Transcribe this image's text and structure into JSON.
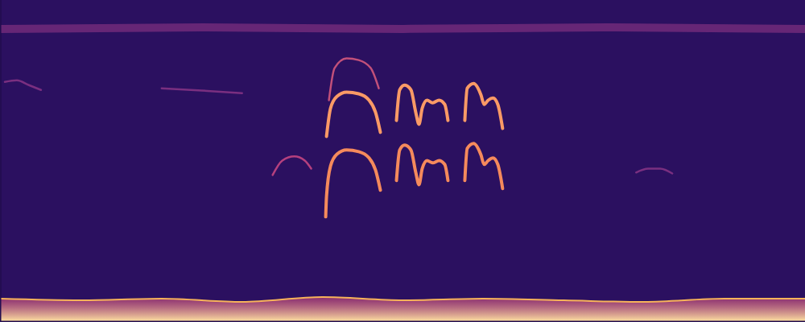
{
  "chart_data": {
    "type": "spectrogram",
    "xlim": [
      0,
      100
    ],
    "ylim": [
      0,
      100
    ],
    "tick_labels": false,
    "grid": false,
    "series": [
      {
        "type": "area",
        "color": "#f7b35a",
        "x": [
          0,
          10,
          20,
          30,
          40,
          50,
          60,
          70,
          80,
          90,
          100
        ],
        "values": [
          7,
          6.5,
          7,
          6,
          7.5,
          6.5,
          7,
          6.5,
          6,
          7,
          7
        ]
      },
      {
        "type": "line",
        "color": "#8e3585",
        "x": [
          0,
          25,
          50,
          75,
          100
        ],
        "values": [
          91,
          91.5,
          91,
          91.5,
          91
        ]
      },
      {
        "type": "line",
        "color": "#7a2f80",
        "x": [
          0.5,
          2,
          3.5,
          5
        ],
        "values": [
          74.5,
          75,
          73.5,
          72
        ]
      },
      {
        "type": "line",
        "color": "#7a2f80",
        "x": [
          20,
          25,
          30
        ],
        "values": [
          72.5,
          71.8,
          71
        ]
      },
      {
        "type": "line",
        "color": "#b5407e",
        "x": [
          33.8,
          35,
          36.5,
          37.8,
          38.6
        ],
        "values": [
          45.5,
          50,
          51.3,
          50,
          47.5
        ]
      },
      {
        "type": "line",
        "color": "#c2507a",
        "x": [
          40.8,
          41.5,
          43,
          44.5,
          46,
          47
        ],
        "values": [
          68.8,
          78.8,
          81.8,
          81.3,
          78.8,
          72.5
        ]
      },
      {
        "type": "line",
        "color": "#fa9a66",
        "x": [
          40.5,
          41,
          41.8,
          43,
          44.5,
          45.8,
          46.6,
          47.2
        ],
        "values": [
          57.5,
          66.3,
          70,
          71.3,
          70.8,
          68.8,
          65,
          58.8
        ]
      },
      {
        "type": "line",
        "color": "#f58a5c",
        "x": [
          40.4,
          40.5,
          41,
          41.8,
          43,
          44.5,
          45.8,
          46.6,
          47.2
        ],
        "values": [
          32.5,
          38.8,
          48.3,
          52,
          53.3,
          52.8,
          50.8,
          47,
          40.8
        ]
      },
      {
        "type": "line",
        "color": "#fa9a66",
        "x": [
          49.2,
          49.6,
          50.2,
          51,
          51.6,
          52,
          52.4,
          53,
          53.7,
          54.5,
          55.2,
          55.6
        ],
        "values": [
          62.5,
          72,
          73.5,
          72,
          65,
          61.3,
          66.3,
          68.8,
          68,
          68.8,
          67.5,
          62.5
        ]
      },
      {
        "type": "line",
        "color": "#f58a5c",
        "x": [
          49.2,
          49.6,
          50.2,
          51,
          51.6,
          52,
          52.4,
          53,
          53.7,
          54.5,
          55.2,
          55.6
        ],
        "values": [
          43.8,
          53.3,
          54.8,
          53.3,
          46.3,
          42.5,
          47.5,
          50,
          49.3,
          50,
          48.8,
          43.8
        ]
      },
      {
        "type": "line",
        "color": "#fa9a66",
        "x": [
          57.7,
          58,
          58.8,
          59.7,
          60.1,
          60.6,
          61.2,
          61.8,
          62.4
        ],
        "values": [
          62.5,
          72.5,
          74,
          70.5,
          67.5,
          68.8,
          69.5,
          67.5,
          60
        ]
      },
      {
        "type": "line",
        "color": "#f58a5c",
        "x": [
          57.7,
          58,
          58.8,
          59.7,
          60.1,
          60.6,
          61.2,
          61.8,
          62.4
        ],
        "values": [
          43.8,
          53.8,
          55.3,
          51.8,
          48.8,
          50,
          50.8,
          48.8,
          41.3
        ]
      },
      {
        "type": "line",
        "color": "#7a2f80",
        "x": [
          79,
          80.5,
          82,
          83.5
        ],
        "values": [
          46.3,
          47.5,
          47.5,
          46
        ]
      }
    ]
  }
}
